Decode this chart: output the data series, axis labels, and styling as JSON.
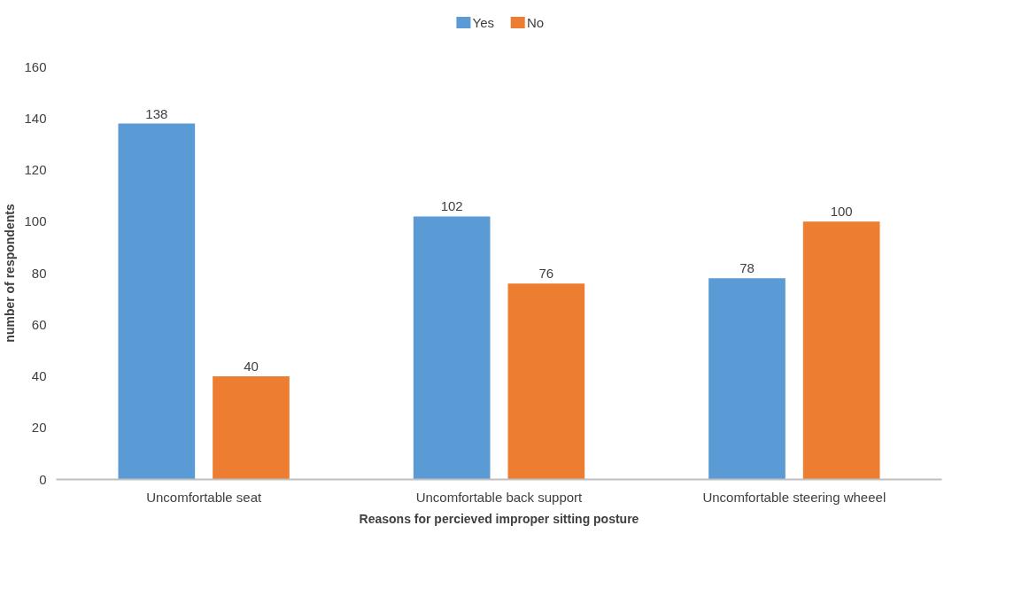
{
  "chart_data": {
    "type": "bar",
    "xlabel": "Reasons for percieved improper sitting posture",
    "ylabel": "number of respondents",
    "categories": [
      "Uncomfortable seat",
      "Uncomfortable back support",
      "Uncomfortable steering wheeel"
    ],
    "series": [
      {
        "name": "Yes",
        "color": "#5b9bd5",
        "values": [
          138,
          102,
          78
        ]
      },
      {
        "name": "No",
        "color": "#ed7d31",
        "values": [
          40,
          76,
          100
        ]
      }
    ],
    "ylim": [
      0,
      160
    ],
    "yticks": [
      0,
      20,
      40,
      60,
      80,
      100,
      120,
      140,
      160
    ],
    "grid": false,
    "legend": "top",
    "data_labels": true
  }
}
